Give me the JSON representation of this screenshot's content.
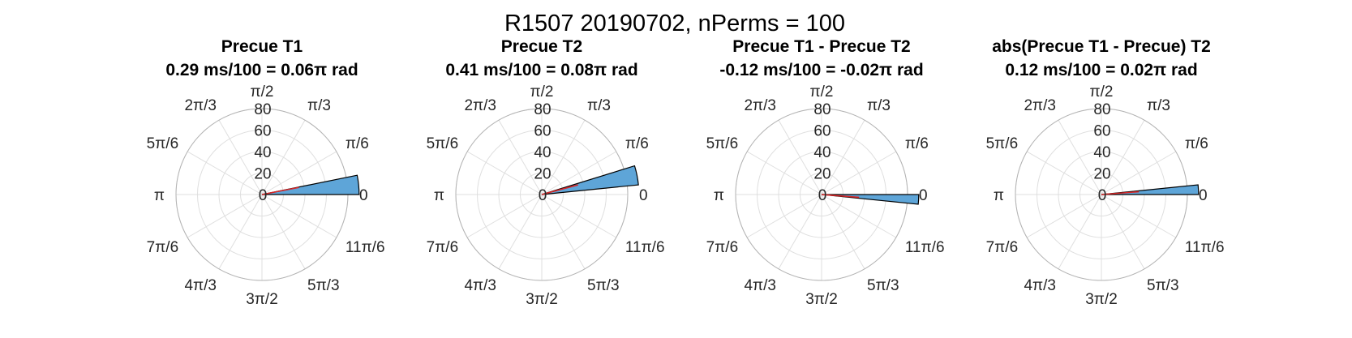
{
  "figure": {
    "title": "R1507 20190702, nPerms = 100"
  },
  "colors": {
    "bar_fill": "#5ea5d8",
    "bar_edge": "#000000",
    "mean_line": "#d62728",
    "grid": "#dfdfdf"
  },
  "chart_data": [
    {
      "type": "polar-histogram",
      "title": "Precue T1",
      "subtitle": "0.29 ms/100 = 0.06π rad",
      "theta_tick_labels": [
        "0",
        "π/6",
        "π/3",
        "π/2",
        "2π/3",
        "5π/6",
        "π",
        "7π/6",
        "4π/3",
        "3π/2",
        "5π/3",
        "11π/6"
      ],
      "r_ticks": [
        0,
        20,
        40,
        60,
        80
      ],
      "rlim": [
        0,
        80
      ],
      "bins": [
        {
          "theta_start_rad": 0.0,
          "theta_end_rad": 0.2,
          "count": 100
        }
      ],
      "mean_angle_rad": 0.19
    },
    {
      "type": "polar-histogram",
      "title": "Precue T2",
      "subtitle": "0.41 ms/100 = 0.08π rad",
      "theta_tick_labels": [
        "0",
        "π/6",
        "π/3",
        "π/2",
        "2π/3",
        "5π/6",
        "π",
        "7π/6",
        "4π/3",
        "3π/2",
        "5π/3",
        "11π/6"
      ],
      "r_ticks": [
        0,
        20,
        40,
        60,
        80
      ],
      "rlim": [
        0,
        80
      ],
      "bins": [
        {
          "theta_start_rad": 0.1,
          "theta_end_rad": 0.3,
          "count": 100
        }
      ],
      "mean_angle_rad": 0.26
    },
    {
      "type": "polar-histogram",
      "title": "Precue T1 - Precue T2",
      "subtitle": "-0.12 ms/100 = -0.02π rad",
      "theta_tick_labels": [
        "0",
        "π/6",
        "π/3",
        "π/2",
        "2π/3",
        "5π/6",
        "π",
        "7π/6",
        "4π/3",
        "3π/2",
        "5π/3",
        "11π/6"
      ],
      "r_ticks": [
        0,
        20,
        40,
        60,
        80
      ],
      "rlim": [
        0,
        80
      ],
      "bins": [
        {
          "theta_start_rad": -0.1,
          "theta_end_rad": 0.0,
          "count": 100
        }
      ],
      "mean_angle_rad": -0.075
    },
    {
      "type": "polar-histogram",
      "title": "abs(Precue T1 - Precue) T2",
      "subtitle": "0.12 ms/100 = 0.02π rad",
      "theta_tick_labels": [
        "0",
        "π/6",
        "π/3",
        "π/2",
        "2π/3",
        "5π/6",
        "π",
        "7π/6",
        "4π/3",
        "3π/2",
        "5π/3",
        "11π/6"
      ],
      "r_ticks": [
        0,
        20,
        40,
        60,
        80
      ],
      "rlim": [
        0,
        80
      ],
      "bins": [
        {
          "theta_start_rad": 0.0,
          "theta_end_rad": 0.1,
          "count": 100
        }
      ],
      "mean_angle_rad": 0.075
    }
  ]
}
